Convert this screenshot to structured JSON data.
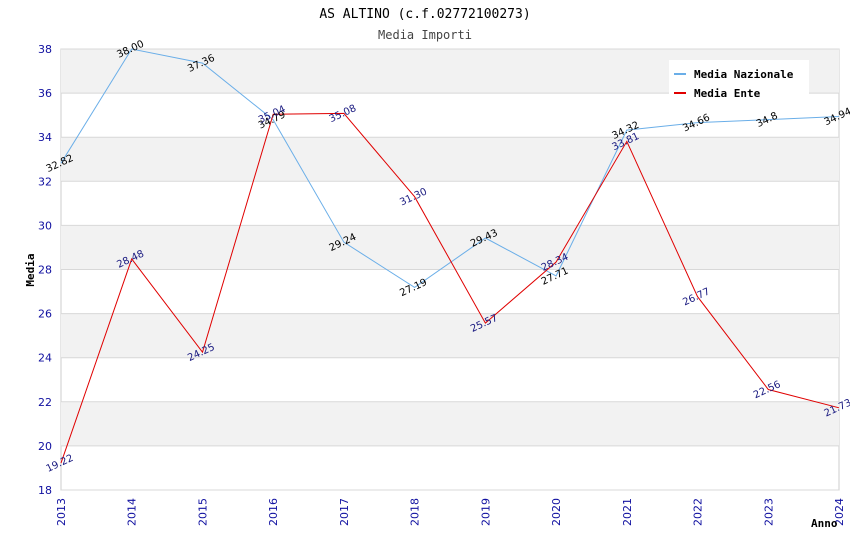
{
  "chart_data": {
    "type": "line",
    "title": "AS ALTINO (c.f.02772100273)",
    "subtitle": "Media Importi",
    "xlabel": "Anno",
    "ylabel": "Media",
    "ylim": [
      18,
      38
    ],
    "yticks": [
      "18",
      "20",
      "22",
      "24",
      "26",
      "28",
      "30",
      "32",
      "34",
      "36",
      "38"
    ],
    "categories": [
      "2013",
      "2014",
      "2015",
      "2016",
      "2017",
      "2018",
      "2019",
      "2020",
      "2021",
      "2022",
      "2023",
      "2024"
    ],
    "legend_position": "top-right",
    "series": [
      {
        "name": "Media Nazionale",
        "color": "#6aaee8",
        "label_color": "#000000",
        "values": [
          32.82,
          38.0,
          37.36,
          34.79,
          29.24,
          27.19,
          29.43,
          27.71,
          34.32,
          34.66,
          34.8,
          34.94
        ],
        "labels": [
          "32.82",
          "38.00",
          "37.36",
          "34.79",
          "29.24",
          "27.19",
          "29.43",
          "27.71",
          "34.32",
          "34.66",
          "34.8",
          "34.94"
        ]
      },
      {
        "name": "Media Ente",
        "color": "#e00000",
        "label_color": "#1a1a80",
        "values": [
          19.22,
          28.48,
          24.25,
          35.04,
          35.08,
          31.3,
          25.57,
          28.34,
          33.81,
          26.77,
          22.56,
          21.73
        ],
        "labels": [
          "19.22",
          "28.48",
          "24.25",
          "35.04",
          "35.08",
          "31.30",
          "25.57",
          "28.34",
          "33.81",
          "26.77",
          "22.56",
          "21.73"
        ]
      }
    ]
  }
}
